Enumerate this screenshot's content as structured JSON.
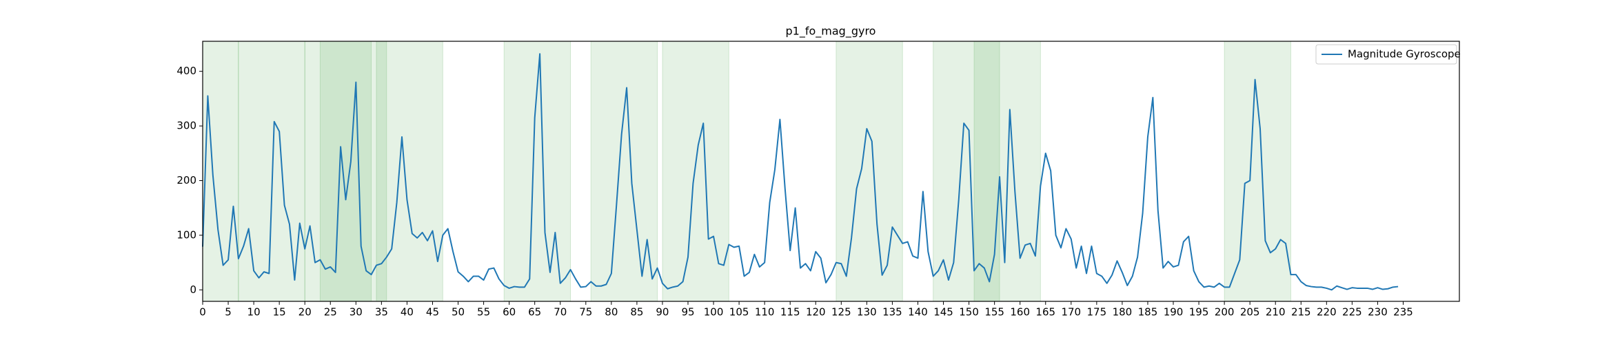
{
  "chart_data": {
    "type": "line",
    "title": "p1_fo_mag_gyro",
    "x": [
      0,
      1,
      2,
      3,
      4,
      5,
      6,
      7,
      8,
      9,
      10,
      11,
      12,
      13,
      14,
      15,
      16,
      17,
      18,
      19,
      20,
      21,
      22,
      23,
      24,
      25,
      26,
      27,
      28,
      29,
      30,
      31,
      32,
      33,
      34,
      35,
      36,
      37,
      38,
      39,
      40,
      41,
      42,
      43,
      44,
      45,
      46,
      47,
      48,
      49,
      50,
      51,
      52,
      53,
      54,
      55,
      56,
      57,
      58,
      59,
      60,
      61,
      62,
      63,
      64,
      65,
      66,
      67,
      68,
      69,
      70,
      71,
      72,
      73,
      74,
      75,
      76,
      77,
      78,
      79,
      80,
      81,
      82,
      83,
      84,
      85,
      86,
      87,
      88,
      89,
      90,
      91,
      92,
      93,
      94,
      95,
      96,
      97,
      98,
      99,
      100,
      101,
      102,
      103,
      104,
      105,
      106,
      107,
      108,
      109,
      110,
      111,
      112,
      113,
      114,
      115,
      116,
      117,
      118,
      119,
      120,
      121,
      122,
      123,
      124,
      125,
      126,
      127,
      128,
      129,
      130,
      131,
      132,
      133,
      134,
      135,
      136,
      137,
      138,
      139,
      140,
      141,
      142,
      143,
      144,
      145,
      146,
      147,
      148,
      149,
      150,
      151,
      152,
      153,
      154,
      155,
      156,
      157,
      158,
      159,
      160,
      161,
      162,
      163,
      164,
      165,
      166,
      167,
      168,
      169,
      170,
      171,
      172,
      173,
      174,
      175,
      176,
      177,
      178,
      179,
      180,
      181,
      182,
      183,
      184,
      185,
      186,
      187,
      188,
      189,
      190,
      191,
      192,
      193,
      194,
      195,
      196,
      197,
      198,
      199,
      200,
      201,
      202,
      203,
      204,
      205,
      206,
      207,
      208,
      209,
      210,
      211,
      212,
      213,
      214,
      215,
      216,
      217,
      218,
      219,
      220,
      221,
      222,
      223,
      224,
      225,
      226,
      227,
      228,
      229,
      230,
      231,
      232,
      233,
      234
    ],
    "series": [
      {
        "name": "Magnitude Gyroscope",
        "color": "#1f77b4",
        "values": [
          79,
          355,
          210,
          110,
          45,
          55,
          153,
          57,
          80,
          112,
          35,
          22,
          33,
          30,
          308,
          290,
          155,
          120,
          18,
          122,
          75,
          117,
          50,
          55,
          38,
          42,
          32,
          262,
          165,
          235,
          380,
          80,
          35,
          28,
          45,
          48,
          60,
          75,
          160,
          280,
          165,
          103,
          95,
          105,
          90,
          108,
          52,
          100,
          112,
          70,
          33,
          25,
          15,
          25,
          25,
          18,
          38,
          40,
          20,
          8,
          3,
          6,
          5,
          5,
          20,
          315,
          432,
          105,
          32,
          105,
          12,
          22,
          37,
          20,
          5,
          6,
          15,
          7,
          7,
          10,
          30,
          155,
          285,
          370,
          195,
          110,
          25,
          92,
          20,
          40,
          12,
          2,
          5,
          7,
          15,
          60,
          195,
          265,
          305,
          93,
          98,
          48,
          45,
          83,
          78,
          80,
          25,
          32,
          65,
          42,
          50,
          160,
          220,
          312,
          185,
          72,
          150,
          40,
          48,
          35,
          70,
          58,
          13,
          28,
          50,
          48,
          25,
          95,
          185,
          222,
          295,
          272,
          120,
          27,
          45,
          115,
          100,
          85,
          88,
          62,
          58,
          180,
          70,
          25,
          35,
          55,
          18,
          50,
          165,
          305,
          292,
          35,
          48,
          40,
          15,
          65,
          207,
          50,
          330,
          180,
          58,
          82,
          85,
          62,
          190,
          250,
          218,
          100,
          77,
          112,
          93,
          40,
          80,
          30,
          80,
          30,
          25,
          12,
          27,
          53,
          32,
          8,
          25,
          60,
          140,
          280,
          352,
          145,
          40,
          52,
          42,
          45,
          88,
          98,
          35,
          15,
          5,
          7,
          5,
          12,
          5,
          5,
          30,
          55,
          195,
          200,
          385,
          295,
          90,
          68,
          75,
          92,
          85,
          28,
          28,
          15,
          8,
          6,
          5,
          5,
          3,
          0,
          7,
          4,
          1,
          4,
          3,
          3,
          3,
          1,
          4,
          1,
          2,
          5,
          6
        ]
      }
    ],
    "shaded_spans": [
      [
        0,
        7
      ],
      [
        7,
        20
      ],
      [
        20,
        33
      ],
      [
        23,
        36
      ],
      [
        34,
        47
      ],
      [
        59,
        72
      ],
      [
        76,
        89
      ],
      [
        90,
        103
      ],
      [
        124,
        137
      ],
      [
        143,
        156
      ],
      [
        151,
        164
      ],
      [
        200,
        213
      ]
    ],
    "span_color": "green",
    "span_alpha": 0.1,
    "xlim": [
      0,
      246
    ],
    "ylim": [
      -21,
      455
    ],
    "xticks": [
      0,
      5,
      10,
      15,
      20,
      25,
      30,
      35,
      40,
      45,
      50,
      55,
      60,
      65,
      70,
      75,
      80,
      85,
      90,
      95,
      100,
      105,
      110,
      115,
      120,
      125,
      130,
      135,
      140,
      145,
      150,
      155,
      160,
      165,
      170,
      175,
      180,
      185,
      190,
      195,
      200,
      205,
      210,
      215,
      220,
      225,
      230,
      235
    ],
    "yticks": [
      0,
      100,
      200,
      300,
      400
    ],
    "legend": "upper right"
  }
}
